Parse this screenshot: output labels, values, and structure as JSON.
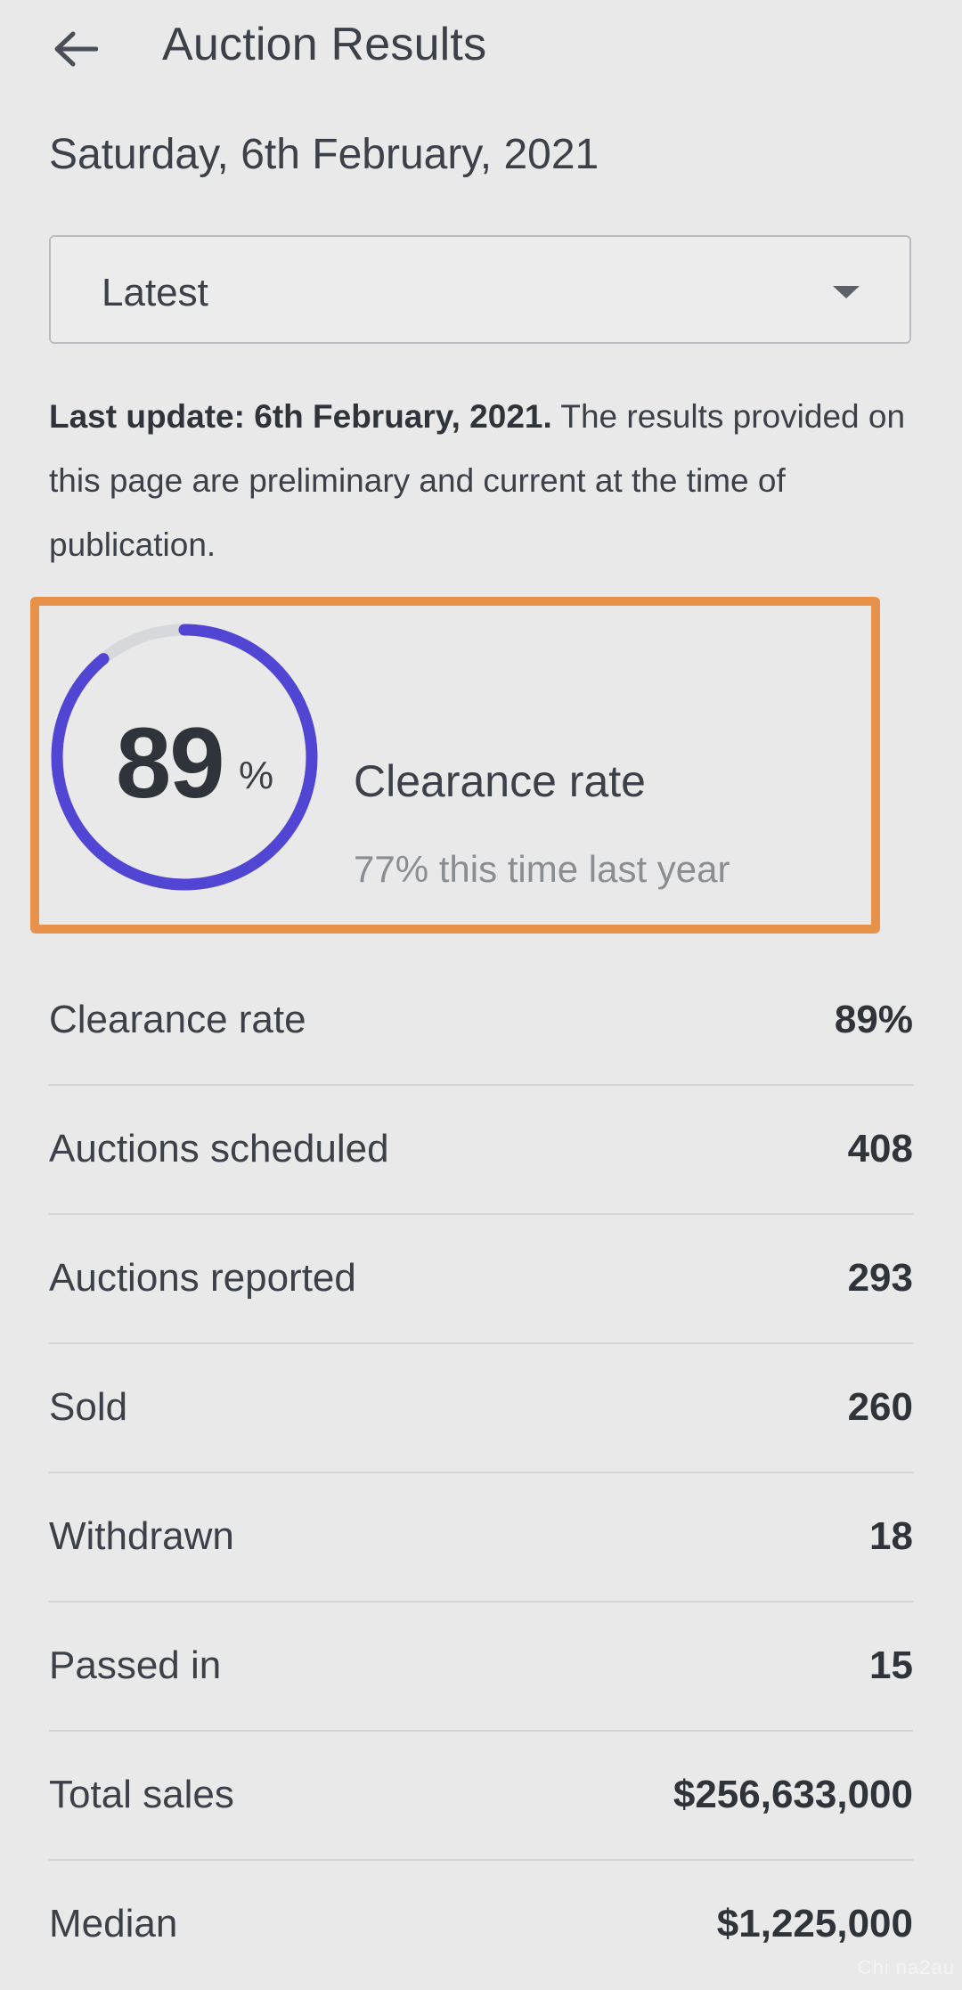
{
  "header": {
    "title": "Auction Results",
    "back_icon": "arrow-left-icon"
  },
  "date_heading": "Saturday, 6th February, 2021",
  "selector": {
    "value": "Latest",
    "icon": "chevron-down-icon"
  },
  "notice": {
    "bold_text": "Last update: 6th February, 2021.",
    "text": " The results provided on this page are preliminary and current at the time of publication."
  },
  "clearance_card": {
    "percent_value": "89",
    "percent_sign": "%",
    "progress": 0.89,
    "label": "Clearance rate",
    "comparison": "77% this time last year",
    "ring_color": "#5145d4",
    "track_color": "#d6d8dc",
    "highlight_color": "#e8914a"
  },
  "stats": [
    {
      "label": "Clearance rate",
      "value": "89%"
    },
    {
      "label": "Auctions scheduled",
      "value": "408"
    },
    {
      "label": "Auctions reported",
      "value": "293"
    },
    {
      "label": "Sold",
      "value": "260"
    },
    {
      "label": "Withdrawn",
      "value": "18"
    },
    {
      "label": "Passed in",
      "value": "15"
    },
    {
      "label": "Total sales",
      "value": "$256,633,000"
    },
    {
      "label": "Median",
      "value": "$1,225,000"
    }
  ],
  "watermark": "Chi na2au"
}
